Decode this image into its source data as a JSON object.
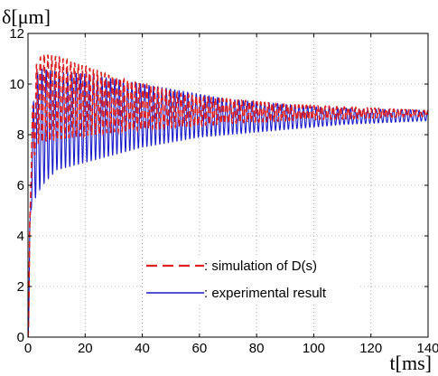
{
  "chart_data": {
    "type": "line",
    "ylabel": "δ[μm]",
    "xlabel": "t[ms]",
    "xlim": [
      0,
      140
    ],
    "ylim": [
      0,
      12
    ],
    "x_ticks": [
      "0",
      "20",
      "40",
      "60",
      "80",
      "100",
      "120",
      "140"
    ],
    "y_ticks": [
      "0",
      "2",
      "4",
      "6",
      "8",
      "10",
      "12"
    ],
    "grid": true,
    "legend_position": "bottom-center",
    "series": [
      {
        "name": ": simulation of D(s)",
        "color": "#e02020",
        "style": "dashed",
        "envelope": {
          "t": [
            0,
            1,
            2,
            3,
            5,
            10,
            20,
            30,
            40,
            50,
            60,
            70,
            80,
            90,
            100,
            110,
            120,
            130,
            140
          ],
          "upper": [
            0,
            8.2,
            9.6,
            10.8,
            11.2,
            11.1,
            10.7,
            10.3,
            10.0,
            9.7,
            9.5,
            9.4,
            9.3,
            9.2,
            9.15,
            9.1,
            9.05,
            9.0,
            8.95
          ],
          "lower": [
            0,
            6.0,
            7.0,
            7.6,
            7.7,
            7.8,
            7.95,
            8.1,
            8.2,
            8.3,
            8.35,
            8.45,
            8.5,
            8.55,
            8.6,
            8.62,
            8.66,
            8.7,
            8.72
          ]
        },
        "cycle_ms": 1.33
      },
      {
        "name": ": experimental result",
        "color": "#1a1acc",
        "style": "solid",
        "envelope": {
          "t": [
            0,
            1,
            2,
            3,
            5,
            10,
            20,
            30,
            40,
            50,
            60,
            70,
            80,
            90,
            100,
            110,
            120,
            130,
            140
          ],
          "upper": [
            0,
            7.5,
            9.5,
            10.4,
            10.6,
            10.5,
            10.4,
            10.2,
            10.0,
            9.8,
            9.6,
            9.4,
            9.3,
            9.2,
            9.1,
            9.05,
            9.0,
            9.0,
            8.95
          ],
          "lower": [
            0,
            5.0,
            5.3,
            5.6,
            6.0,
            6.6,
            6.9,
            7.2,
            7.5,
            7.7,
            7.9,
            8.0,
            8.1,
            8.2,
            8.3,
            8.4,
            8.45,
            8.5,
            8.55
          ]
        },
        "cycle_ms": 1.5
      }
    ]
  }
}
